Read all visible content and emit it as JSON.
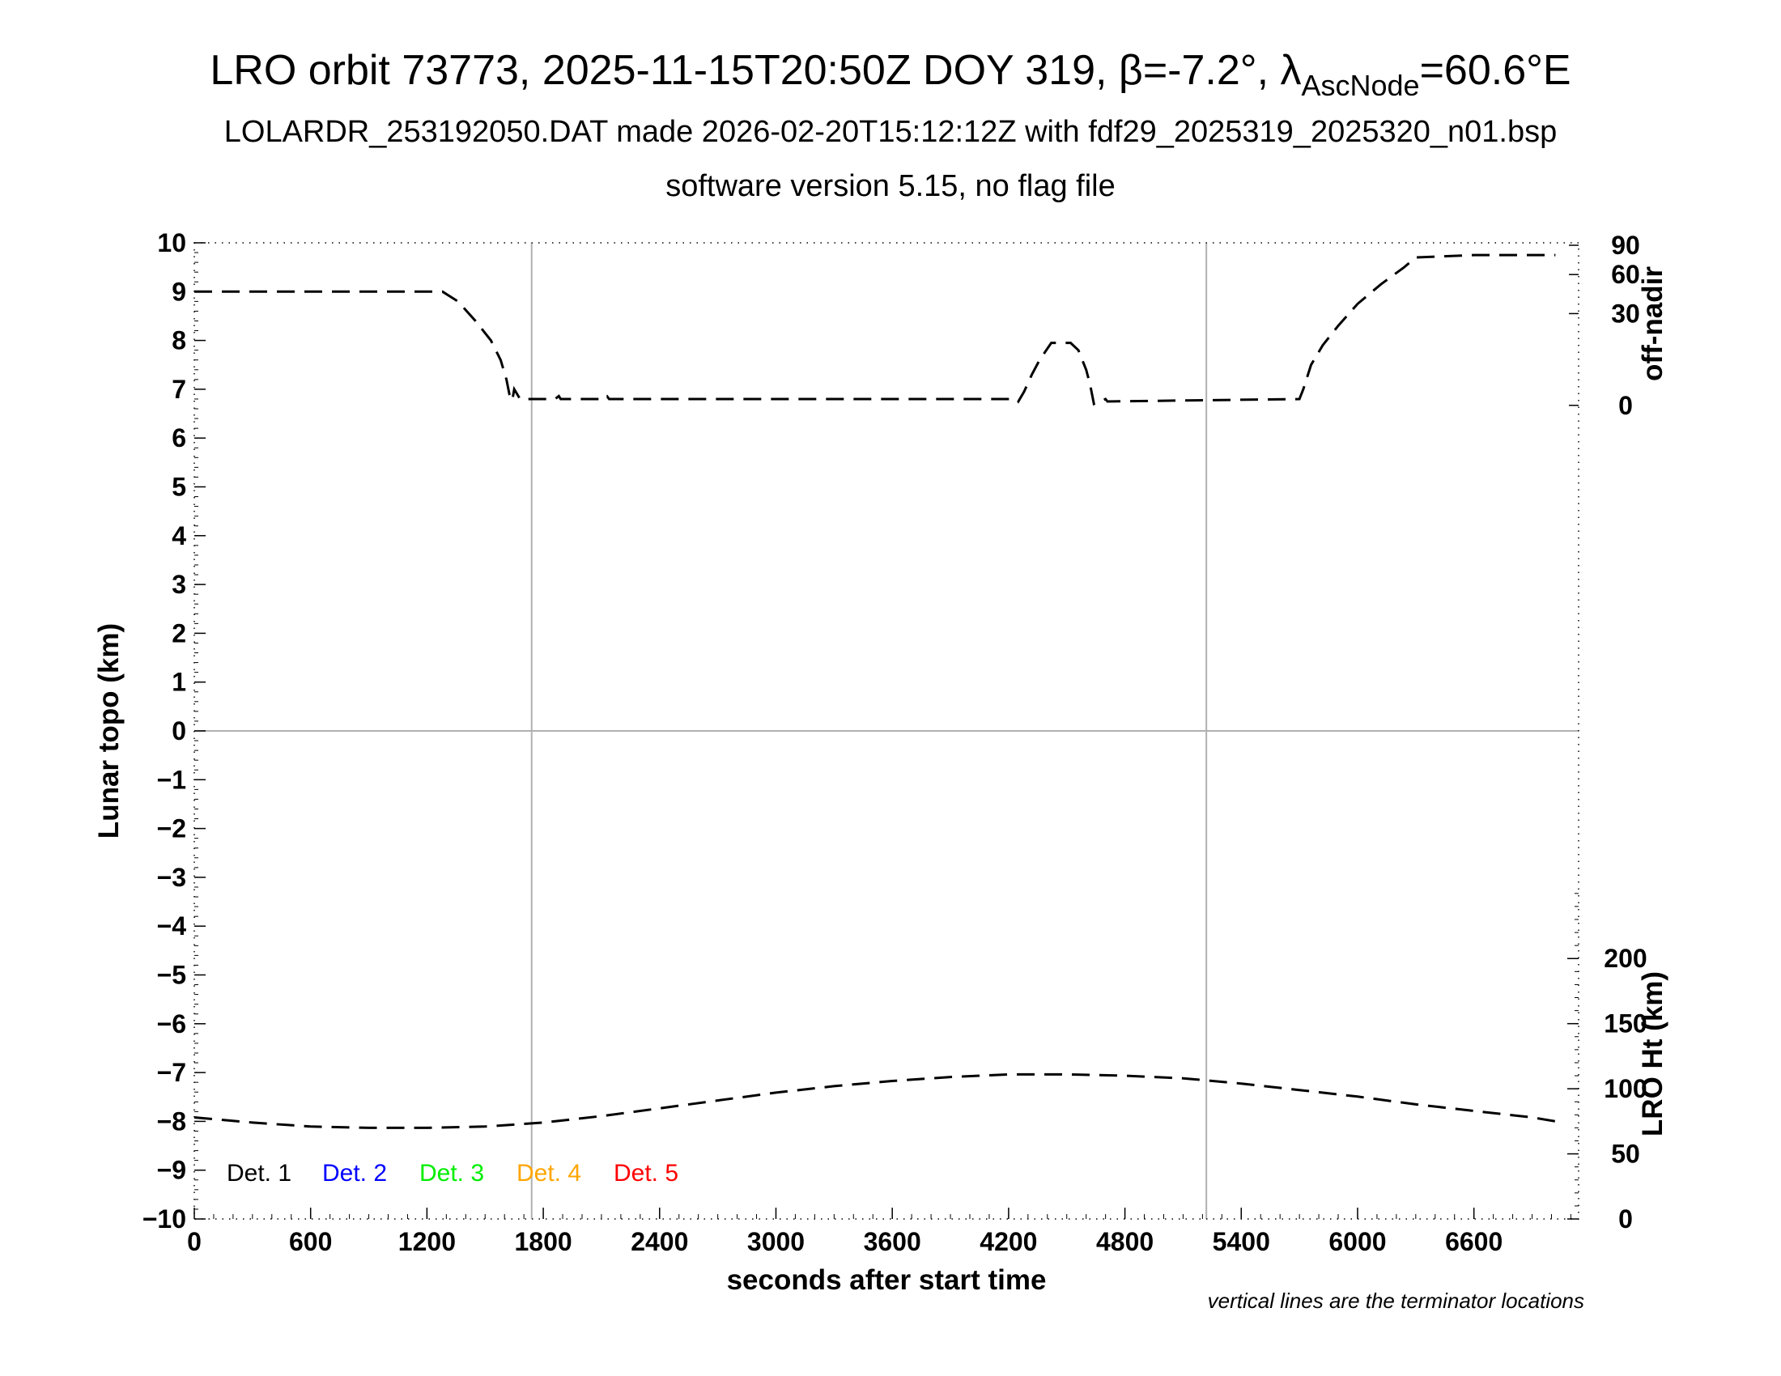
{
  "title": {
    "main": "LRO orbit 73773, 2025-11-15T20:50Z DOY 319, β=-7.2°, λ",
    "sub_script": "AscNode",
    "suffix": "=60.6°E"
  },
  "subtitle1": "LOLARDR_253192050.DAT made 2026-02-20T15:12:12Z with fdf29_2025319_2025320_n01.bsp",
  "subtitle2": "software version 5.15, no flag file",
  "footnote": "vertical lines are the terminator locations",
  "colors": {
    "axis": "#000000",
    "grid": "#b0b0b0",
    "det1": "#000000",
    "det2": "#0000ff",
    "det3": "#00ee00",
    "det4": "#ffa500",
    "det5": "#ff0000"
  },
  "chart_data": {
    "type": "line",
    "xlabel": "seconds after start time",
    "ylabel_left": "Lunar topo (km)",
    "ylabel_right_top": "off-nadir",
    "ylabel_right_bottom": "LRO Ht (km)",
    "xlim": [
      0,
      7140
    ],
    "ylim": [
      -10,
      10
    ],
    "x_ticks": [
      0,
      600,
      1200,
      1800,
      2400,
      3000,
      3600,
      4200,
      4800,
      5400,
      6000,
      6600
    ],
    "y_ticks": [
      10,
      9,
      8,
      7,
      6,
      5,
      4,
      3,
      2,
      1,
      0,
      -1,
      -2,
      -3,
      -4,
      -5,
      -6,
      -7,
      -8,
      -9,
      -10
    ],
    "y_tick_labels": [
      "10",
      "9",
      "8",
      "7",
      "6",
      "5",
      "4",
      "3",
      "2",
      "1",
      "0",
      "−1",
      "−2",
      "−3",
      "−4",
      "−5",
      "−6",
      "−7",
      "−8",
      "−9",
      "−10"
    ],
    "right_top_axis": {
      "ticks": [
        0,
        30,
        60,
        90
      ],
      "mapping": "off-nadir angle plotted on topo scale",
      "tick_topo_positions": [
        6.67,
        8.55,
        9.35,
        9.95
      ]
    },
    "right_bottom_axis": {
      "range": [
        0,
        250
      ],
      "ticks": [
        0,
        50,
        100,
        150,
        200
      ],
      "topo_range": [
        -10,
        -3.33
      ]
    },
    "grid": true,
    "terminators_x": [
      1740,
      5220
    ],
    "legend": [
      "Det. 1",
      "Det. 2",
      "Det. 3",
      "Det. 4",
      "Det. 5"
    ],
    "legend_placement": "bottom-left",
    "series": [
      {
        "name": "off-nadir",
        "units": "topo km",
        "x": [
          0,
          1280,
          1360,
          1450,
          1530,
          1580,
          1610,
          1625,
          1640,
          1650,
          1665,
          1680,
          1860,
          1880,
          1890,
          2120,
          2130,
          2140,
          4240,
          4250,
          4280,
          4320,
          4360,
          4420,
          4520,
          4560,
          4600,
          4620,
          4630,
          4640,
          4700,
          4710,
          5700,
          5720,
          5760,
          5820,
          5900,
          6000,
          6120,
          6240,
          6300,
          6600,
          7020
        ],
        "y": [
          9.0,
          9.0,
          8.8,
          8.4,
          8.0,
          7.6,
          7.2,
          6.9,
          6.77,
          7.0,
          6.9,
          6.8,
          6.8,
          6.86,
          6.8,
          6.8,
          6.85,
          6.8,
          6.8,
          6.75,
          6.95,
          7.3,
          7.6,
          7.95,
          7.95,
          7.8,
          7.4,
          7.1,
          6.9,
          6.7,
          6.8,
          6.75,
          6.8,
          7.0,
          7.5,
          7.9,
          8.3,
          8.75,
          9.15,
          9.5,
          9.7,
          9.75,
          9.75
        ]
      },
      {
        "name": "LRO Ht (km)",
        "units": "km",
        "x": [
          0,
          300,
          600,
          900,
          1200,
          1500,
          1800,
          2100,
          2400,
          2700,
          3000,
          3300,
          3600,
          3900,
          4200,
          4500,
          4800,
          5100,
          5400,
          5700,
          6000,
          6300,
          6600,
          6900,
          7020
        ],
        "y": [
          78,
          74,
          71,
          70,
          70,
          71,
          74,
          79,
          85,
          91,
          97,
          102,
          106,
          109,
          111,
          111,
          110,
          108,
          104,
          99,
          94,
          88,
          83,
          78,
          75
        ]
      }
    ]
  }
}
